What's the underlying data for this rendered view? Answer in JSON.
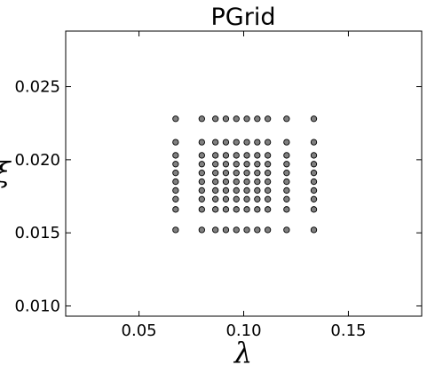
{
  "chart_data": {
    "type": "scatter",
    "title": "PGrid",
    "xlabel": "λ",
    "ylabel": "ξ",
    "xlim": [
      0.015,
      0.185
    ],
    "ylim": [
      0.0093,
      0.0288
    ],
    "x_ticks": [
      0.05,
      0.1,
      0.15
    ],
    "x_tick_labels": [
      "0.05",
      "0.10",
      "0.15"
    ],
    "y_ticks": [
      0.01,
      0.015,
      0.02,
      0.025
    ],
    "y_tick_labels": [
      "0.010",
      "0.015",
      "0.020",
      "0.025"
    ],
    "grid": false,
    "marker_color": "#808080",
    "marker_edge_color": "#000000",
    "x_values": [
      0.0675,
      0.08,
      0.0865,
      0.0915,
      0.0965,
      0.1015,
      0.1065,
      0.1115,
      0.1205,
      0.1335
    ],
    "y_values": [
      0.0152,
      0.0166,
      0.0173,
      0.0179,
      0.0185,
      0.0191,
      0.0197,
      0.0203,
      0.0212,
      0.0228
    ],
    "points_note_grid": "every combination of x_values and y_values"
  }
}
